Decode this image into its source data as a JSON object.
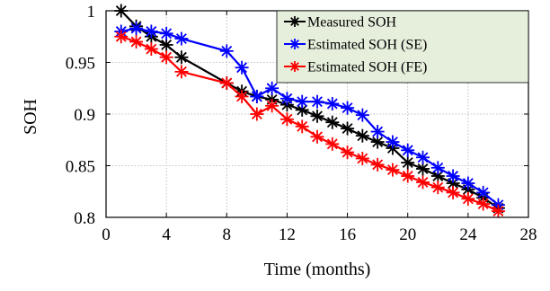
{
  "chart_data": {
    "type": "line",
    "xlabel": "Time (months)",
    "ylabel": "SOH",
    "xlim": [
      0,
      28
    ],
    "ylim": [
      0.8,
      1.0
    ],
    "xticks": [
      "0",
      "4",
      "8",
      "12",
      "16",
      "20",
      "24",
      "28"
    ],
    "yticks": [
      "0.8",
      "0.85",
      "0.9",
      "0.95",
      "1"
    ],
    "grid": true,
    "legend_position": "top-right",
    "series": [
      {
        "name": "Measured SOH",
        "color": "#000000",
        "marker": "asterisk",
        "x": [
          1,
          2,
          3,
          4,
          5,
          8,
          9,
          10,
          11,
          12,
          13,
          14,
          15,
          16,
          17,
          18,
          19,
          20,
          21,
          22,
          23,
          24,
          25,
          26
        ],
        "y": [
          1.0,
          0.985,
          0.975,
          0.967,
          0.955,
          0.93,
          0.922,
          0.917,
          0.914,
          0.909,
          0.904,
          0.898,
          0.892,
          0.886,
          0.879,
          0.873,
          0.867,
          0.853,
          0.847,
          0.84,
          0.833,
          0.827,
          0.819,
          0.809
        ]
      },
      {
        "name": "Estimated SOH (SE)",
        "color": "#0000ff",
        "marker": "asterisk",
        "x": [
          1,
          2,
          3,
          4,
          5,
          8,
          9,
          10,
          11,
          12,
          13,
          14,
          15,
          16,
          17,
          18,
          19,
          20,
          21,
          22,
          23,
          24,
          25,
          26
        ],
        "y": [
          0.98,
          0.983,
          0.98,
          0.978,
          0.973,
          0.961,
          0.945,
          0.917,
          0.925,
          0.915,
          0.912,
          0.912,
          0.91,
          0.906,
          0.899,
          0.883,
          0.873,
          0.865,
          0.858,
          0.848,
          0.84,
          0.833,
          0.824,
          0.812
        ]
      },
      {
        "name": "Estimated SOH (FE)",
        "color": "#ff0000",
        "marker": "asterisk",
        "x": [
          1,
          2,
          3,
          4,
          5,
          8,
          9,
          10,
          11,
          12,
          13,
          14,
          15,
          16,
          17,
          18,
          19,
          20,
          21,
          22,
          23,
          24,
          25,
          26
        ],
        "y": [
          0.975,
          0.97,
          0.963,
          0.955,
          0.941,
          0.93,
          0.917,
          0.9,
          0.908,
          0.895,
          0.888,
          0.878,
          0.871,
          0.863,
          0.857,
          0.851,
          0.846,
          0.84,
          0.834,
          0.829,
          0.824,
          0.818,
          0.813,
          0.806
        ]
      }
    ]
  }
}
